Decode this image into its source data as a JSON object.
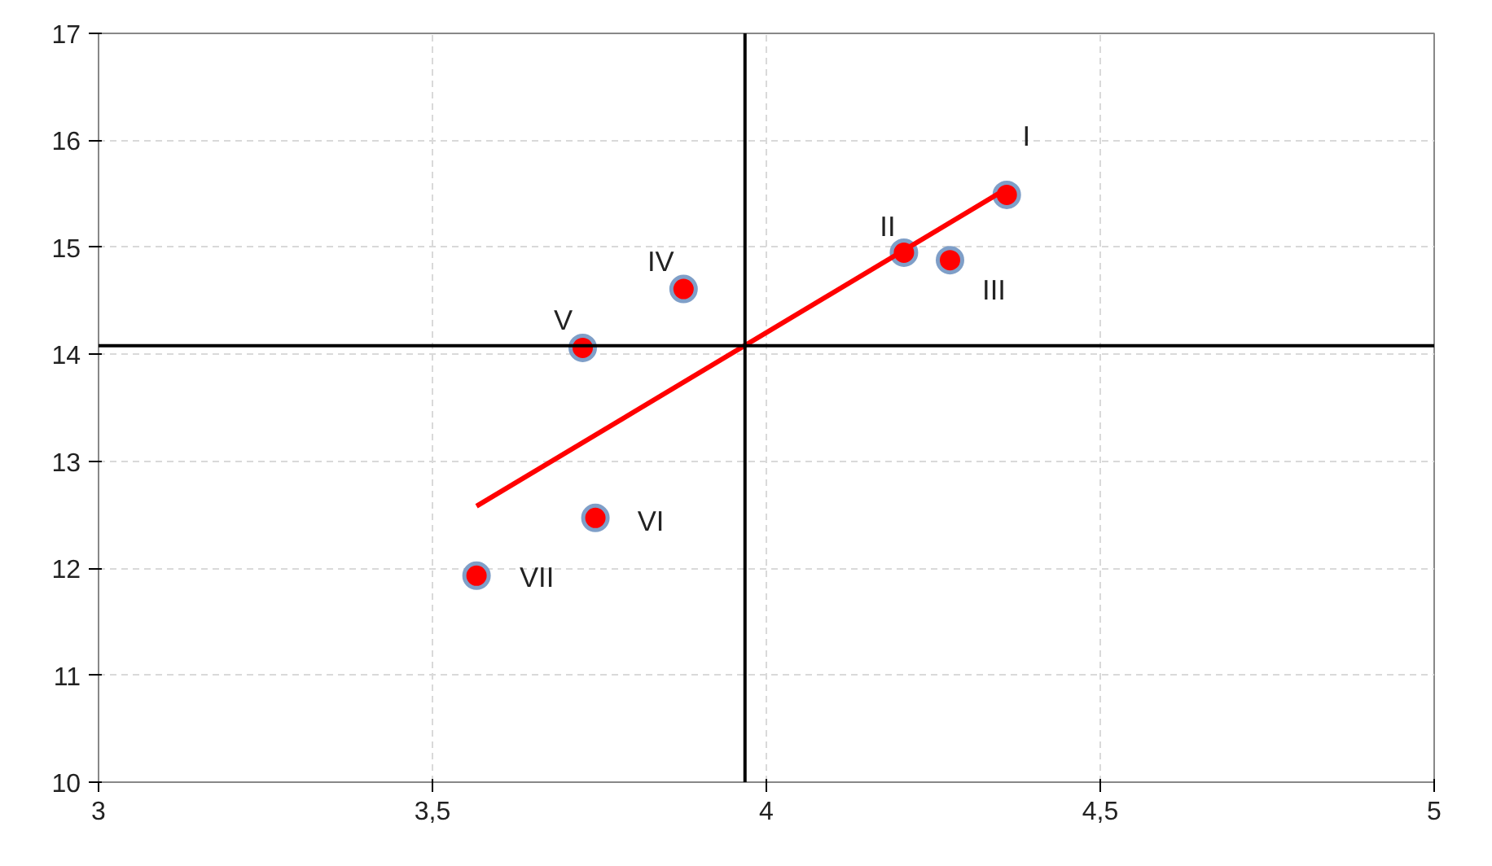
{
  "chart_data": {
    "type": "scatter",
    "xlim": [
      3,
      5
    ],
    "ylim": [
      10,
      17
    ],
    "xticks": [
      3,
      {
        "value": 3.5,
        "label": "3,5"
      },
      4,
      {
        "value": 4.5,
        "label": "4,5"
      },
      5
    ],
    "yticks": [
      10,
      11,
      12,
      13,
      14,
      15,
      16,
      17
    ],
    "grid": true,
    "series": [
      {
        "marker": "circle",
        "color": "#ff0000",
        "x": [
          4.36,
          4.206,
          4.275,
          3.876,
          3.725,
          3.744,
          3.566
        ],
        "values": [
          15.49,
          14.95,
          14.88,
          14.61,
          14.06,
          12.47,
          11.93
        ]
      },
      {
        "type": "line",
        "color": "#ff0000",
        "x": [
          3.566,
          4.347
        ],
        "values": [
          12.58,
          15.5
        ]
      }
    ],
    "ref_lines": [
      {
        "axis": "x",
        "value": 3.968,
        "color": "#000000"
      },
      {
        "axis": "y",
        "value": 14.08,
        "color": "#000000"
      }
    ],
    "annotations": [
      {
        "text": "I",
        "x": 4.36,
        "y": 15.49
      },
      {
        "text": "II",
        "x": 4.206,
        "y": 14.95
      },
      {
        "text": "III",
        "x": 4.275,
        "y": 14.88
      },
      {
        "text": "IV",
        "x": 3.876,
        "y": 14.61
      },
      {
        "text": "V",
        "x": 3.725,
        "y": 14.06
      },
      {
        "text": "VI",
        "x": 3.744,
        "y": 12.47
      },
      {
        "text": "VII",
        "x": 3.566,
        "y": 11.93
      }
    ]
  }
}
